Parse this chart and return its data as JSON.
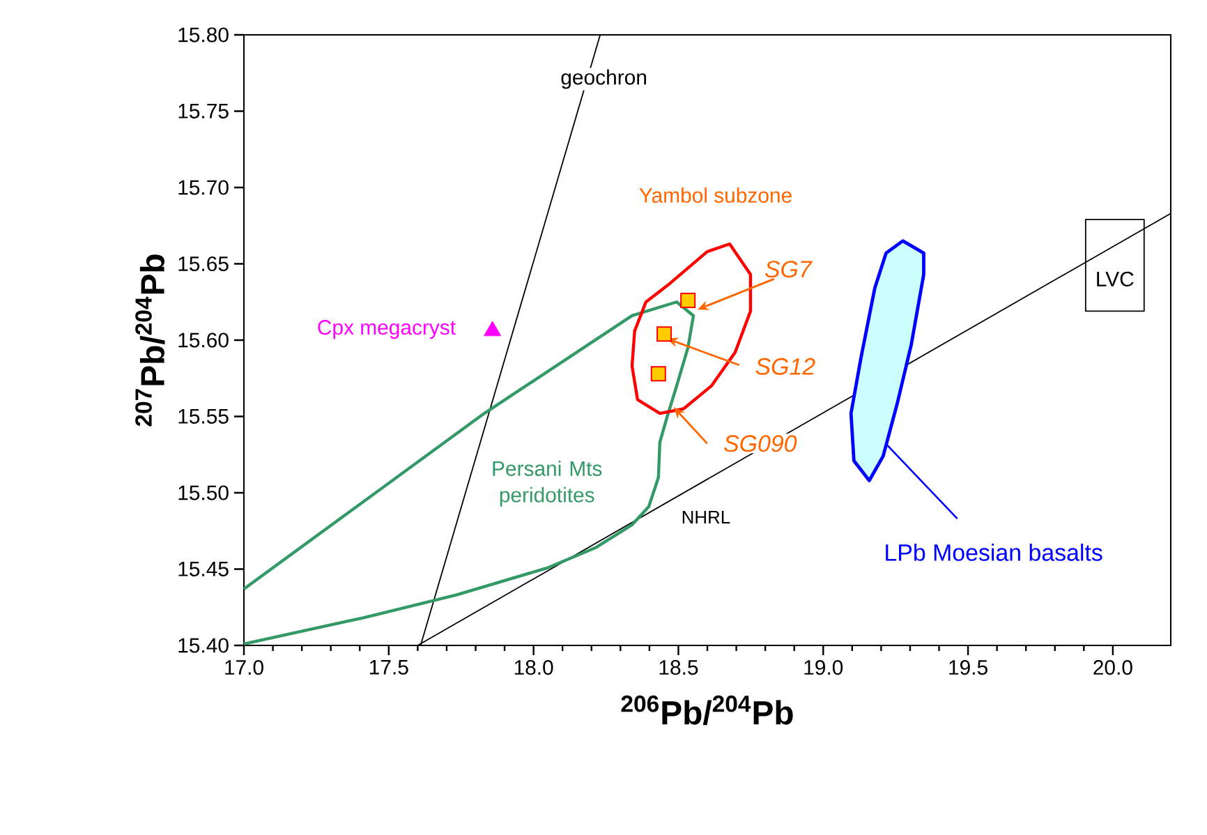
{
  "chart_data": {
    "type": "line",
    "xlabel": "$^{206}$Pb/$^{204}$Pb",
    "ylabel": "$^{207}$Pb/$^{204}$Pb",
    "xlim": [
      17.0,
      20.2
    ],
    "ylim": [
      15.4,
      15.8
    ],
    "xticks": [
      {
        "value": 17.0,
        "label": "17.0"
      },
      {
        "value": 17.5,
        "label": "17.5"
      },
      {
        "value": 18.0,
        "label": "18.0"
      },
      {
        "value": 18.5,
        "label": "18.5"
      },
      {
        "value": 19.0,
        "label": "19.0"
      },
      {
        "value": 19.5,
        "label": "19.5"
      },
      {
        "value": 20.0,
        "label": "20.0"
      }
    ],
    "yticks": [
      {
        "value": 15.4,
        "label": "15.40"
      },
      {
        "value": 15.45,
        "label": "15.45"
      },
      {
        "value": 15.5,
        "label": "15.50"
      },
      {
        "value": 15.55,
        "label": "15.55"
      },
      {
        "value": 15.6,
        "label": "15.60"
      },
      {
        "value": 15.65,
        "label": "15.65"
      },
      {
        "value": 15.7,
        "label": "15.70"
      },
      {
        "value": 15.75,
        "label": "15.75"
      },
      {
        "value": 15.8,
        "label": "15.80"
      }
    ],
    "grid": false,
    "series": [
      {
        "name": "geochron",
        "color": "#000000",
        "x": [
          17.61,
          18.23
        ],
        "values": [
          15.4,
          15.8
        ]
      },
      {
        "name": "NHRL",
        "color": "#000000",
        "x": [
          17.6,
          20.2
        ],
        "values": [
          15.4,
          15.683
        ]
      },
      {
        "name": "Persani Mts peridotites",
        "color": "#339966",
        "x": [
          17.0,
          17.83,
          18.34,
          18.494,
          18.552,
          18.533,
          18.494,
          18.46,
          18.436,
          18.431,
          18.398,
          18.34,
          18.214,
          18.051,
          17.733,
          17.41,
          17.0
        ],
        "values": [
          15.437,
          15.552,
          15.616,
          15.625,
          15.616,
          15.595,
          15.57,
          15.549,
          15.533,
          15.51,
          15.491,
          15.479,
          15.464,
          15.451,
          15.433,
          15.418,
          15.401
        ]
      },
      {
        "name": "Yambol subzone",
        "color": "#ff0000",
        "x": [
          18.677,
          18.749,
          18.749,
          18.696,
          18.614,
          18.518,
          18.436,
          18.359,
          18.34,
          18.349,
          18.388,
          18.47,
          18.6,
          18.677
        ],
        "values": [
          15.663,
          15.643,
          15.619,
          15.592,
          15.57,
          15.555,
          15.552,
          15.561,
          15.583,
          15.606,
          15.625,
          15.637,
          15.658,
          15.663
        ]
      },
      {
        "type": "area",
        "name": "LPb Moesian basalts",
        "color": "#0000ff",
        "x": [
          19.275,
          19.347,
          19.347,
          19.304,
          19.255,
          19.207,
          19.159,
          19.106,
          19.096,
          19.13,
          19.178,
          19.217,
          19.275
        ],
        "values": [
          15.665,
          15.657,
          15.643,
          15.597,
          15.558,
          15.524,
          15.508,
          15.521,
          15.552,
          15.588,
          15.634,
          15.657,
          15.665
        ]
      },
      {
        "name": "LVC",
        "color": "#000000",
        "x": [
          19.906,
          20.108,
          20.108,
          19.906,
          19.906
        ],
        "values": [
          15.679,
          15.679,
          15.619,
          15.619,
          15.679
        ]
      },
      {
        "type": "scatter",
        "name": "Cpx megacryst",
        "color": "#ff00ff",
        "marker": "triangle",
        "x": [
          17.858
        ],
        "values": [
          15.606
        ]
      },
      {
        "type": "scatter",
        "color": "#ffcc00",
        "marker": "square",
        "x": [
          18.533,
          18.451,
          18.431
        ],
        "values": [
          15.626,
          15.604,
          15.578
        ]
      }
    ],
    "annotations": [
      {
        "text": "SG7",
        "x": 18.566,
        "y": 15.62
      },
      {
        "text": "SG12",
        "x": 18.46,
        "y": 15.601
      },
      {
        "text": "SG090",
        "x": 18.484,
        "y": 15.556
      }
    ]
  }
}
